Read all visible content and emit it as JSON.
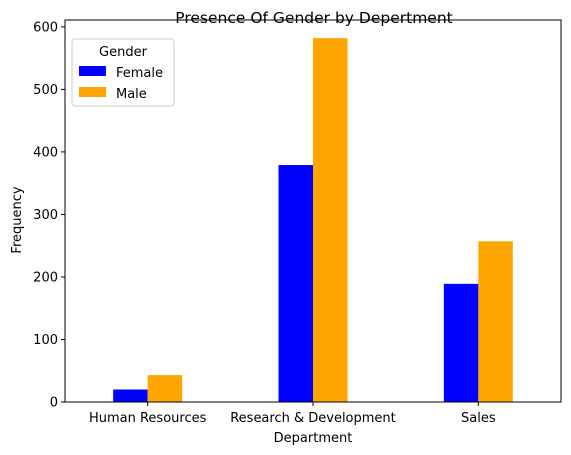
{
  "chart_data": {
    "type": "bar",
    "title": "Presence Of Gender by Depertment",
    "xlabel": "Department",
    "ylabel": "Frequency",
    "categories": [
      "Human Resources",
      "Research & Development",
      "Sales"
    ],
    "series": [
      {
        "name": "Female",
        "color": "#0000ff",
        "values": [
          20,
          379,
          189
        ]
      },
      {
        "name": "Male",
        "color": "#ffa500",
        "values": [
          43,
          582,
          257
        ]
      }
    ],
    "ylim": [
      0,
      611
    ],
    "yticks": [
      0,
      100,
      200,
      300,
      400,
      500,
      600
    ],
    "grid": false,
    "legend": {
      "title": "Gender",
      "placement": "top-left"
    }
  }
}
